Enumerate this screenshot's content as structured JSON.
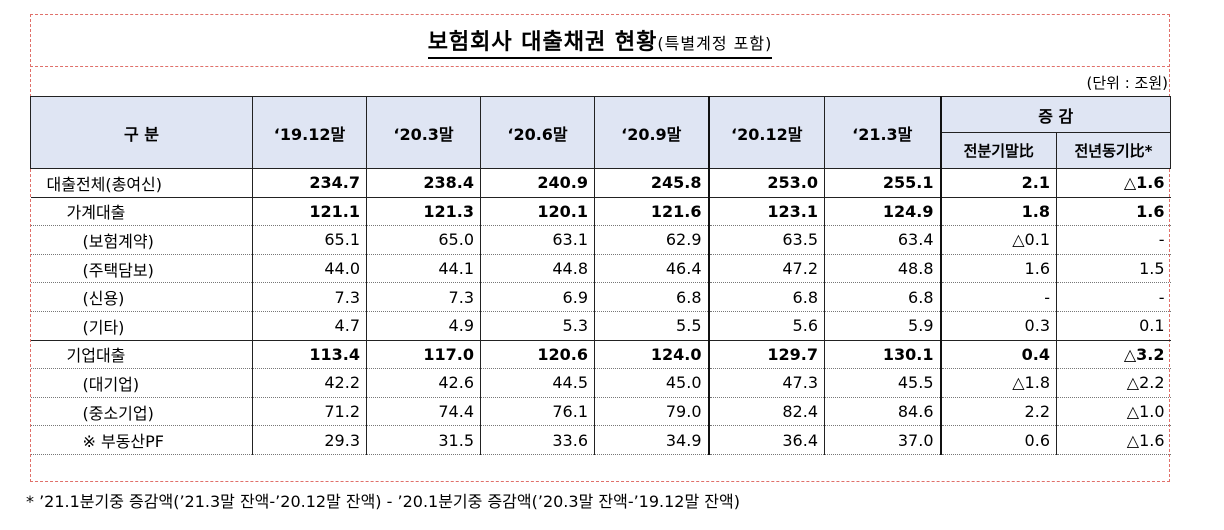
{
  "title": {
    "main": "보험회사 대출채권 현황",
    "sub": "(특별계정 포함)"
  },
  "unit": "(단위 : 조원)",
  "headers": {
    "category": "구 분",
    "periods": [
      "‘19.12말",
      "‘20.3말",
      "‘20.6말",
      "‘20.9말",
      "‘20.12말",
      "‘21.3말"
    ],
    "change": "증 감",
    "change_sub": [
      "전분기말比",
      "전년동기比*"
    ]
  },
  "rows": [
    {
      "label": "대출전체(총여신)",
      "values": [
        "234.7",
        "238.4",
        "240.9",
        "245.8",
        "253.0",
        "255.1",
        "2.1",
        "△1.6"
      ]
    },
    {
      "label": "가계대출",
      "values": [
        "121.1",
        "121.3",
        "120.1",
        "121.6",
        "123.1",
        "124.9",
        "1.8",
        "1.6"
      ]
    },
    {
      "label": "(보험계약)",
      "values": [
        "65.1",
        "65.0",
        "63.1",
        "62.9",
        "63.5",
        "63.4",
        "△0.1",
        "-"
      ]
    },
    {
      "label": "(주택담보)",
      "values": [
        "44.0",
        "44.1",
        "44.8",
        "46.4",
        "47.2",
        "48.8",
        "1.6",
        "1.5"
      ]
    },
    {
      "label": "(신용)",
      "values": [
        "7.3",
        "7.3",
        "6.9",
        "6.8",
        "6.8",
        "6.8",
        "-",
        "-"
      ]
    },
    {
      "label": "(기타)",
      "values": [
        "4.7",
        "4.9",
        "5.3",
        "5.5",
        "5.6",
        "5.9",
        "0.3",
        "0.1"
      ]
    },
    {
      "label": "기업대출",
      "values": [
        "113.4",
        "117.0",
        "120.6",
        "124.0",
        "129.7",
        "130.1",
        "0.4",
        "△3.2"
      ]
    },
    {
      "label": "(대기업)",
      "values": [
        "42.2",
        "42.6",
        "44.5",
        "45.0",
        "47.3",
        "45.5",
        "△1.8",
        "△2.2"
      ]
    },
    {
      "label": "(중소기업)",
      "values": [
        "71.2",
        "74.4",
        "76.1",
        "79.0",
        "82.4",
        "84.6",
        "2.2",
        "△1.0"
      ]
    },
    {
      "label": "※ 부동산PF",
      "values": [
        "29.3",
        "31.5",
        "33.6",
        "34.9",
        "36.4",
        "37.0",
        "0.6",
        "△1.6"
      ]
    }
  ],
  "footnote": "* ’21.1분기중 증감액(’21.3말 잔액-’20.12말 잔액) - ’20.1분기중 증감액(’20.3말 잔액-’19.12말 잔액)"
}
